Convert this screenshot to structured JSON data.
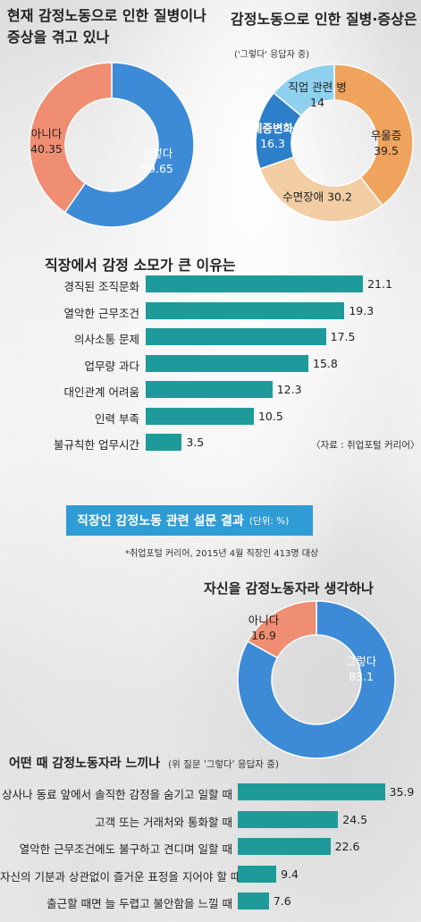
{
  "colors": {
    "teal": "#1f9a9a",
    "blue": "#3d8bd6",
    "salmon": "#ef8e72",
    "orange": "#f0a35c",
    "light_blue": "#8fd0ef",
    "peach": "#f3cda3",
    "dark_blue": "#2d7fc9",
    "header_blue": "#2f9cd6"
  },
  "chart_data": [
    {
      "type": "pie",
      "title": "현재 감정노동으로 인한 질병이나 증상을 겪고 있나",
      "slices": [
        {
          "name": "그렇다",
          "value": 59.65
        },
        {
          "name": "아니다",
          "value": 40.35
        }
      ]
    },
    {
      "type": "pie",
      "title": "감정노동으로 인한 질병·증상은",
      "subtitle": "('그렇다' 응답자 중)",
      "slices": [
        {
          "name": "우울증",
          "value": 39.5
        },
        {
          "name": "수면장애",
          "value": 30.2
        },
        {
          "name": "체중변화",
          "value": 16.3
        },
        {
          "name": "직업 관련 병",
          "value": 14.0
        }
      ]
    },
    {
      "type": "bar",
      "title": "직장에서 감정 소모가 큰 이유는",
      "categories": [
        "경직된 조직문화",
        "열악한 근무조건",
        "의사소통 문제",
        "업무량 과다",
        "대인관계 어려움",
        "인력 부족",
        "불규칙한 업무시간"
      ],
      "values": [
        21.1,
        19.3,
        17.5,
        15.8,
        12.3,
        10.5,
        3.5
      ],
      "value_labels": [
        "21.1",
        "19.3",
        "17.5",
        "15.8",
        "12.3",
        "10.5",
        "3.5"
      ],
      "xlim": [
        0,
        23
      ]
    },
    {
      "type": "pie",
      "title": "자신을 감정노동자라 생각하나",
      "slices": [
        {
          "name": "그렇다",
          "value": 83.1
        },
        {
          "name": "아니다",
          "value": 16.9
        }
      ]
    },
    {
      "type": "bar",
      "title": "어떤 때 감정노동자라 느끼나",
      "subtitle": "(위 질문 '그렇다' 응답자 중)",
      "categories": [
        "상사나 동료 앞에서 솔직한 감정을 숨기고 일할 때",
        "고객 또는 거래처와 통화할 때",
        "열악한 근무조건에도 불구하고 견디며 일할 때",
        "자신의 기분과 상관없이 즐거운 표정을 지어야 할 때",
        "출근할 때면 늘 두렵고 불안함을 느낄 때"
      ],
      "values": [
        35.9,
        24.5,
        22.6,
        9.4,
        7.6
      ],
      "value_labels": [
        "35.9",
        "24.5",
        "22.6",
        "9.4",
        "7.6"
      ],
      "xlim": [
        0,
        36
      ]
    }
  ],
  "text": {
    "source1": "〈자료 : 취업포털 커리어〉",
    "survey_title": "직장인 감정노동 관련 설문 결과",
    "survey_unit": "(단위: %)",
    "survey_note": "*취업포털 커리어, 2015년 4월 직장인 413명 대상"
  }
}
